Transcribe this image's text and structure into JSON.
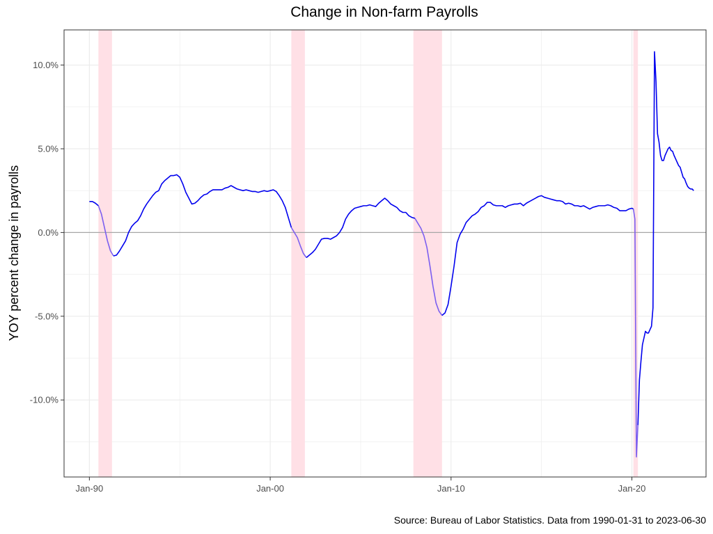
{
  "chart_data": {
    "type": "line",
    "title": "Change in Non-farm Payrolls",
    "xlabel": "",
    "ylabel": "YOY percent change in payrolls",
    "caption": "Source: Bureau of Labor Statistics. Data from 1990-01-31 to 2023-06-30",
    "x_ticks": [
      {
        "label": "Jan-90",
        "year": 1990.0
      },
      {
        "label": "Jan-00",
        "year": 2000.0
      },
      {
        "label": "Jan-10",
        "year": 2010.0
      },
      {
        "label": "Jan-20",
        "year": 2020.0
      }
    ],
    "y_ticks": [
      {
        "label": "10.0%",
        "value": 10
      },
      {
        "label": "5.0%",
        "value": 5
      },
      {
        "label": "0.0%",
        "value": 0
      },
      {
        "label": "-5.0%",
        "value": -5
      },
      {
        "label": "-10.0%",
        "value": -10
      }
    ],
    "xlim": [
      1988.6,
      2024.1
    ],
    "ylim": [
      -14.6,
      12.1
    ],
    "grid": true,
    "reference_line_y": 0,
    "colors": {
      "line": "#0000ee",
      "recession_line": "#7b5ff0",
      "recession_band": "#ffe0e6",
      "zero_line": "#a6a6a6",
      "grid": "#ebebeb",
      "panel_border": "#333333"
    },
    "recessions": [
      {
        "start": "1990-07",
        "end": "1991-03"
      },
      {
        "start": "2001-03",
        "end": "2001-11"
      },
      {
        "start": "2007-12",
        "end": "2009-06"
      },
      {
        "start": "2020-02",
        "end": "2020-04"
      }
    ],
    "series": [
      {
        "points": [
          [
            "1990-01",
            1.85
          ],
          [
            "1990-03",
            1.85
          ],
          [
            "1990-05",
            1.75
          ],
          [
            "1990-07",
            1.6
          ],
          [
            "1990-09",
            1.1
          ],
          [
            "1990-11",
            0.3
          ],
          [
            "1991-01",
            -0.5
          ],
          [
            "1991-03",
            -1.1
          ],
          [
            "1991-05",
            -1.4
          ],
          [
            "1991-07",
            -1.35
          ],
          [
            "1991-09",
            -1.1
          ],
          [
            "1991-11",
            -0.8
          ],
          [
            "1992-01",
            -0.5
          ],
          [
            "1992-03",
            0.0
          ],
          [
            "1992-05",
            0.35
          ],
          [
            "1992-07",
            0.55
          ],
          [
            "1992-09",
            0.7
          ],
          [
            "1992-11",
            1.0
          ],
          [
            "1993-01",
            1.4
          ],
          [
            "1993-03",
            1.7
          ],
          [
            "1993-05",
            1.95
          ],
          [
            "1993-07",
            2.2
          ],
          [
            "1993-09",
            2.4
          ],
          [
            "1993-11",
            2.5
          ],
          [
            "1994-01",
            2.9
          ],
          [
            "1994-03",
            3.1
          ],
          [
            "1994-05",
            3.25
          ],
          [
            "1994-07",
            3.4
          ],
          [
            "1994-09",
            3.4
          ],
          [
            "1994-11",
            3.45
          ],
          [
            "1995-01",
            3.3
          ],
          [
            "1995-03",
            2.9
          ],
          [
            "1995-05",
            2.4
          ],
          [
            "1995-07",
            2.05
          ],
          [
            "1995-09",
            1.7
          ],
          [
            "1995-11",
            1.75
          ],
          [
            "1996-01",
            1.9
          ],
          [
            "1996-03",
            2.1
          ],
          [
            "1996-05",
            2.25
          ],
          [
            "1996-07",
            2.3
          ],
          [
            "1996-09",
            2.45
          ],
          [
            "1996-11",
            2.55
          ],
          [
            "1997-01",
            2.55
          ],
          [
            "1997-03",
            2.55
          ],
          [
            "1997-05",
            2.55
          ],
          [
            "1997-07",
            2.65
          ],
          [
            "1997-09",
            2.7
          ],
          [
            "1997-11",
            2.8
          ],
          [
            "1998-01",
            2.7
          ],
          [
            "1998-03",
            2.6
          ],
          [
            "1998-05",
            2.55
          ],
          [
            "1998-07",
            2.5
          ],
          [
            "1998-09",
            2.55
          ],
          [
            "1998-11",
            2.5
          ],
          [
            "1999-01",
            2.45
          ],
          [
            "1999-03",
            2.45
          ],
          [
            "1999-05",
            2.4
          ],
          [
            "1999-07",
            2.45
          ],
          [
            "1999-09",
            2.5
          ],
          [
            "1999-11",
            2.45
          ],
          [
            "2000-01",
            2.5
          ],
          [
            "2000-03",
            2.55
          ],
          [
            "2000-05",
            2.45
          ],
          [
            "2000-07",
            2.2
          ],
          [
            "2000-09",
            1.9
          ],
          [
            "2000-11",
            1.5
          ],
          [
            "2001-01",
            0.9
          ],
          [
            "2001-03",
            0.3
          ],
          [
            "2001-05",
            0.0
          ],
          [
            "2001-07",
            -0.3
          ],
          [
            "2001-09",
            -0.8
          ],
          [
            "2001-11",
            -1.25
          ],
          [
            "2002-01",
            -1.5
          ],
          [
            "2002-03",
            -1.35
          ],
          [
            "2002-05",
            -1.2
          ],
          [
            "2002-07",
            -1.0
          ],
          [
            "2002-09",
            -0.7
          ],
          [
            "2002-11",
            -0.4
          ],
          [
            "2003-01",
            -0.35
          ],
          [
            "2003-03",
            -0.35
          ],
          [
            "2003-05",
            -0.4
          ],
          [
            "2003-07",
            -0.3
          ],
          [
            "2003-09",
            -0.2
          ],
          [
            "2003-11",
            0.0
          ],
          [
            "2004-01",
            0.3
          ],
          [
            "2004-03",
            0.8
          ],
          [
            "2004-05",
            1.1
          ],
          [
            "2004-07",
            1.3
          ],
          [
            "2004-09",
            1.45
          ],
          [
            "2004-11",
            1.5
          ],
          [
            "2005-01",
            1.55
          ],
          [
            "2005-03",
            1.6
          ],
          [
            "2005-05",
            1.6
          ],
          [
            "2005-07",
            1.65
          ],
          [
            "2005-09",
            1.6
          ],
          [
            "2005-11",
            1.55
          ],
          [
            "2006-01",
            1.75
          ],
          [
            "2006-03",
            1.9
          ],
          [
            "2006-05",
            2.05
          ],
          [
            "2006-07",
            1.9
          ],
          [
            "2006-09",
            1.7
          ],
          [
            "2006-11",
            1.6
          ],
          [
            "2007-01",
            1.5
          ],
          [
            "2007-03",
            1.3
          ],
          [
            "2007-05",
            1.2
          ],
          [
            "2007-07",
            1.2
          ],
          [
            "2007-09",
            1.0
          ],
          [
            "2007-11",
            0.9
          ],
          [
            "2008-01",
            0.85
          ],
          [
            "2008-03",
            0.55
          ],
          [
            "2008-05",
            0.25
          ],
          [
            "2008-07",
            -0.2
          ],
          [
            "2008-09",
            -0.9
          ],
          [
            "2008-11",
            -2.0
          ],
          [
            "2009-01",
            -3.2
          ],
          [
            "2009-03",
            -4.2
          ],
          [
            "2009-05",
            -4.7
          ],
          [
            "2009-07",
            -4.95
          ],
          [
            "2009-09",
            -4.8
          ],
          [
            "2009-11",
            -4.3
          ],
          [
            "2010-01",
            -3.2
          ],
          [
            "2010-03",
            -2.0
          ],
          [
            "2010-05",
            -0.6
          ],
          [
            "2010-07",
            -0.1
          ],
          [
            "2010-09",
            0.2
          ],
          [
            "2010-11",
            0.6
          ],
          [
            "2011-01",
            0.8
          ],
          [
            "2011-03",
            1.0
          ],
          [
            "2011-05",
            1.1
          ],
          [
            "2011-07",
            1.25
          ],
          [
            "2011-09",
            1.5
          ],
          [
            "2011-11",
            1.6
          ],
          [
            "2012-01",
            1.8
          ],
          [
            "2012-03",
            1.8
          ],
          [
            "2012-05",
            1.65
          ],
          [
            "2012-07",
            1.6
          ],
          [
            "2012-09",
            1.6
          ],
          [
            "2012-11",
            1.6
          ],
          [
            "2013-01",
            1.5
          ],
          [
            "2013-03",
            1.6
          ],
          [
            "2013-05",
            1.65
          ],
          [
            "2013-07",
            1.7
          ],
          [
            "2013-09",
            1.7
          ],
          [
            "2013-11",
            1.75
          ],
          [
            "2014-01",
            1.6
          ],
          [
            "2014-03",
            1.75
          ],
          [
            "2014-05",
            1.85
          ],
          [
            "2014-07",
            1.95
          ],
          [
            "2014-09",
            2.05
          ],
          [
            "2014-11",
            2.15
          ],
          [
            "2015-01",
            2.2
          ],
          [
            "2015-03",
            2.1
          ],
          [
            "2015-05",
            2.05
          ],
          [
            "2015-07",
            2.0
          ],
          [
            "2015-09",
            1.95
          ],
          [
            "2015-11",
            1.9
          ],
          [
            "2016-01",
            1.9
          ],
          [
            "2016-03",
            1.85
          ],
          [
            "2016-05",
            1.7
          ],
          [
            "2016-07",
            1.75
          ],
          [
            "2016-09",
            1.7
          ],
          [
            "2016-11",
            1.6
          ],
          [
            "2017-01",
            1.6
          ],
          [
            "2017-03",
            1.55
          ],
          [
            "2017-05",
            1.6
          ],
          [
            "2017-07",
            1.5
          ],
          [
            "2017-09",
            1.4
          ],
          [
            "2017-11",
            1.5
          ],
          [
            "2018-01",
            1.55
          ],
          [
            "2018-03",
            1.6
          ],
          [
            "2018-05",
            1.6
          ],
          [
            "2018-07",
            1.6
          ],
          [
            "2018-09",
            1.65
          ],
          [
            "2018-11",
            1.6
          ],
          [
            "2019-01",
            1.5
          ],
          [
            "2019-03",
            1.45
          ],
          [
            "2019-05",
            1.3
          ],
          [
            "2019-07",
            1.3
          ],
          [
            "2019-09",
            1.3
          ],
          [
            "2019-11",
            1.4
          ],
          [
            "2020-01",
            1.45
          ],
          [
            "2020-02",
            1.4
          ],
          [
            "2020-03",
            0.8
          ],
          [
            "2020-04",
            -13.4
          ],
          [
            "2020-05",
            -11.5
          ],
          [
            "2020-06",
            -8.8
          ],
          [
            "2020-07",
            -7.7
          ],
          [
            "2020-08",
            -6.7
          ],
          [
            "2020-09",
            -6.3
          ],
          [
            "2020-10",
            -5.9
          ],
          [
            "2020-11",
            -6.0
          ],
          [
            "2020-12",
            -6.0
          ],
          [
            "2021-01",
            -5.8
          ],
          [
            "2021-02",
            -5.6
          ],
          [
            "2021-03",
            -4.5
          ],
          [
            "2021-04",
            10.8
          ],
          [
            "2021-05",
            9.0
          ],
          [
            "2021-06",
            5.9
          ],
          [
            "2021-07",
            5.4
          ],
          [
            "2021-08",
            4.6
          ],
          [
            "2021-09",
            4.3
          ],
          [
            "2021-10",
            4.3
          ],
          [
            "2021-11",
            4.6
          ],
          [
            "2021-12",
            4.8
          ],
          [
            "2022-01",
            5.0
          ],
          [
            "2022-02",
            5.1
          ],
          [
            "2022-03",
            4.9
          ],
          [
            "2022-04",
            4.85
          ],
          [
            "2022-05",
            4.6
          ],
          [
            "2022-06",
            4.4
          ],
          [
            "2022-07",
            4.2
          ],
          [
            "2022-08",
            4.0
          ],
          [
            "2022-09",
            3.9
          ],
          [
            "2022-10",
            3.6
          ],
          [
            "2022-11",
            3.3
          ],
          [
            "2022-12",
            3.2
          ],
          [
            "2023-01",
            2.95
          ],
          [
            "2023-02",
            2.75
          ],
          [
            "2023-03",
            2.65
          ],
          [
            "2023-04",
            2.6
          ],
          [
            "2023-05",
            2.6
          ],
          [
            "2023-06",
            2.5
          ]
        ]
      }
    ]
  }
}
